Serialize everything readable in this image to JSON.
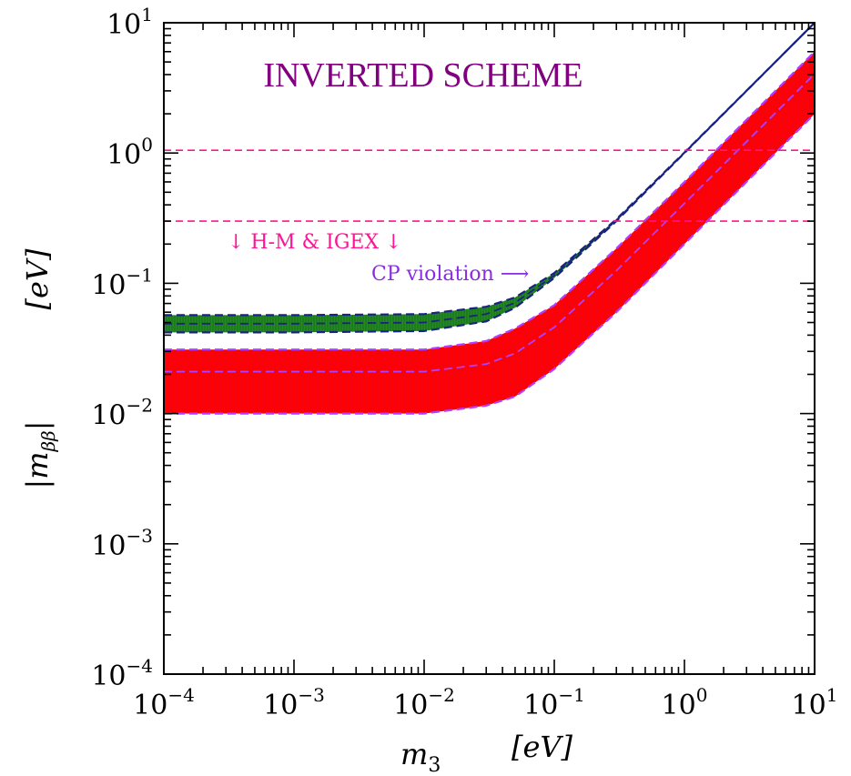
{
  "chart_data": {
    "type": "area",
    "title": "INVERTED SCHEME",
    "xlabel": "m",
    "xlabel_sub": "3",
    "xlabel_unit": "[eV]",
    "ylabel": "|m",
    "ylabel_sub": "ββ",
    "ylabel_close": "|",
    "ylabel_unit": "[eV]",
    "xscale": "log",
    "yscale": "log",
    "xlim": [
      0.0001,
      10
    ],
    "ylim": [
      0.0001,
      10
    ],
    "x_ticks": [
      {
        "base": "10",
        "exp": "−4"
      },
      {
        "base": "10",
        "exp": "−3"
      },
      {
        "base": "10",
        "exp": "−2"
      },
      {
        "base": "10",
        "exp": "−1"
      },
      {
        "base": "10",
        "exp": "0"
      },
      {
        "base": "10",
        "exp": "1"
      }
    ],
    "y_ticks": [
      {
        "base": "10",
        "exp": "−4"
      },
      {
        "base": "10",
        "exp": "−3"
      },
      {
        "base": "10",
        "exp": "−2"
      },
      {
        "base": "10",
        "exp": "−1"
      },
      {
        "base": "10",
        "exp": "0"
      },
      {
        "base": "10",
        "exp": "1"
      }
    ],
    "grid": false,
    "upper_band": {
      "description_color_fill": "#228b22",
      "edge_color": "#1a237e",
      "x": [
        0.0001,
        0.001,
        0.01,
        0.03,
        0.05,
        0.1,
        0.3,
        1,
        3,
        10
      ],
      "y_low": [
        0.042,
        0.042,
        0.043,
        0.051,
        0.065,
        0.11,
        0.3,
        1.0,
        3.0,
        10.0
      ],
      "y_mid": [
        0.049,
        0.049,
        0.05,
        0.058,
        0.071,
        0.115,
        0.305,
        1.005,
        3.0,
        10.0
      ],
      "y_high": [
        0.057,
        0.057,
        0.058,
        0.066,
        0.078,
        0.12,
        0.31,
        1.01,
        3.01,
        10.0
      ]
    },
    "lower_band": {
      "fill_color": "#ff0000",
      "edge_color": "#b040ff",
      "x": [
        0.0001,
        0.001,
        0.01,
        0.03,
        0.05,
        0.1,
        0.3,
        1,
        3,
        10
      ],
      "y_low": [
        0.01,
        0.01,
        0.01,
        0.0115,
        0.0135,
        0.022,
        0.06,
        0.2,
        0.6,
        2.0
      ],
      "y_mid": [
        0.021,
        0.021,
        0.021,
        0.024,
        0.029,
        0.046,
        0.125,
        0.41,
        1.22,
        4.05
      ],
      "y_high": [
        0.031,
        0.031,
        0.031,
        0.036,
        0.045,
        0.068,
        0.185,
        0.6,
        1.8,
        6.0
      ]
    },
    "limits": [
      {
        "y": 1.05,
        "color": "#ff1493",
        "style": "dashed"
      },
      {
        "y": 0.3,
        "color": "#ff1493",
        "style": "dashed"
      }
    ],
    "annotations": [
      {
        "text": "↓ H-M & IGEX ↓",
        "color": "#ff1493"
      },
      {
        "text": "CP violation ⟶",
        "color": "#8a2be2"
      }
    ],
    "colors": {
      "title": "#800080",
      "limit": "#ff1493",
      "upper_edge": "#1a237e",
      "upper_fill": "#228b22",
      "lower_fill": "#ff0000",
      "lower_edge": "#b040ff"
    }
  }
}
